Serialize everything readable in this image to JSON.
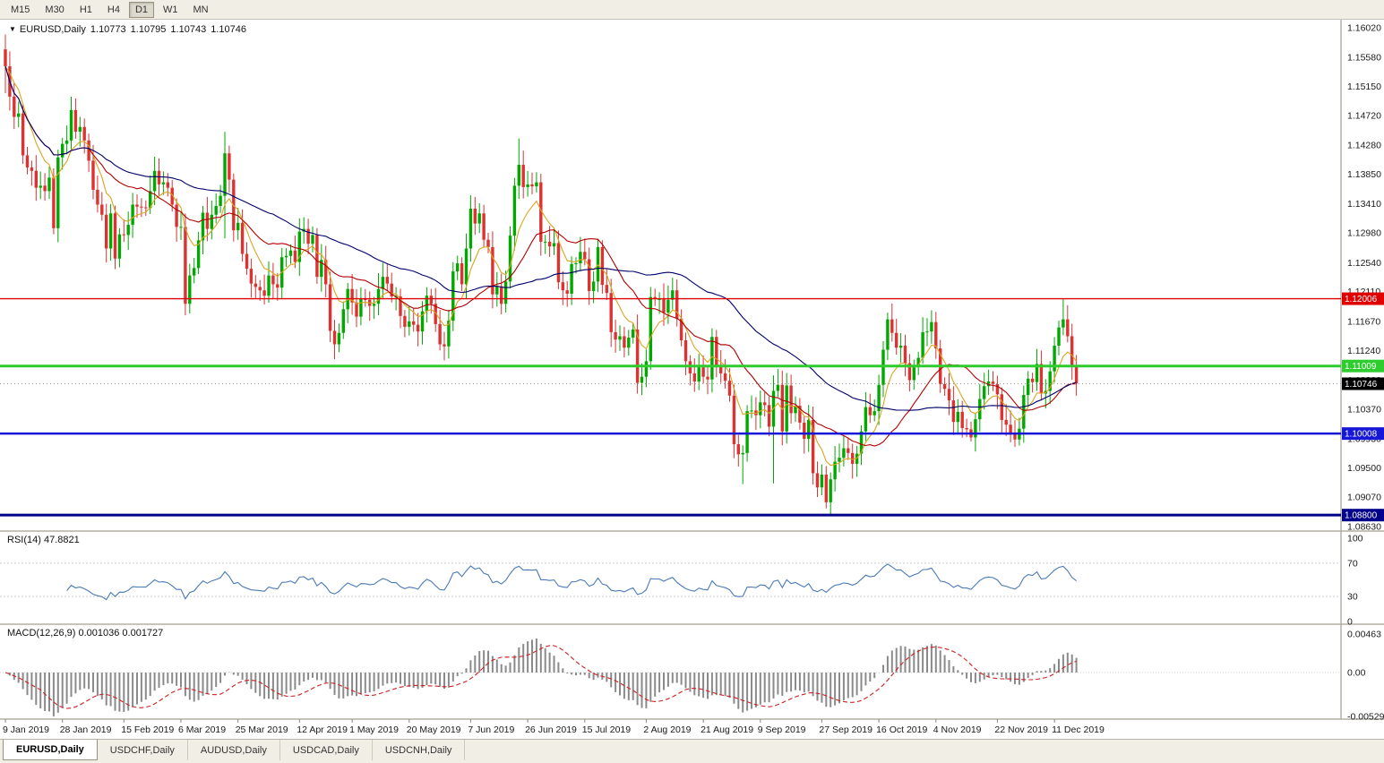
{
  "toolbar": {
    "timeframes": [
      "M15",
      "M30",
      "H1",
      "H4",
      "D1",
      "W1",
      "MN"
    ],
    "active": "D1"
  },
  "chart_header": {
    "dropdown_icon": "▼",
    "symbol": "EURUSD,Daily",
    "open": "1.10773",
    "high": "1.10795",
    "low": "1.10743",
    "close": "1.10746"
  },
  "price_axis": {
    "ticks": [
      "1.16020",
      "1.15580",
      "1.15150",
      "1.14720",
      "1.14280",
      "1.13850",
      "1.13410",
      "1.12980",
      "1.12540",
      "1.12110",
      "1.11670",
      "1.11240",
      "1.10800",
      "1.10370",
      "1.09930",
      "1.09500",
      "1.09070",
      "1.08630"
    ]
  },
  "levels": [
    {
      "name": "resistance-line-red",
      "value": "1.12006",
      "price": 1.12006,
      "color": "#e00000",
      "width": 1.3
    },
    {
      "name": "support-line-green",
      "value": "1.11009",
      "price": 1.11009,
      "color": "#2ecc2e",
      "width": 3
    },
    {
      "name": "current-price-line",
      "value": "1.10746",
      "price": 1.10746,
      "color": "#999999",
      "width": 1,
      "dash": "1,3",
      "box_color": "#000000"
    },
    {
      "name": "support-line-blue",
      "value": "1.10008",
      "price": 1.10008,
      "color": "#1616d8",
      "width": 2.5
    },
    {
      "name": "support-line-navy",
      "value": "1.08800",
      "price": 1.088,
      "color": "#00008b",
      "width": 3
    }
  ],
  "rsi": {
    "label": "RSI(14) 47.8821",
    "period": 14,
    "value": 47.8821,
    "axis_ticks": [
      "100",
      "70",
      "30",
      "0"
    ],
    "level_lines": [
      70,
      30
    ],
    "color": "#4a7ab5"
  },
  "macd": {
    "label": "MACD(12,26,9) 0.001036 0.001727",
    "fast": 12,
    "slow": 26,
    "signal": 9,
    "values": {
      "macd": 0.001036,
      "signal": 0.001727
    },
    "axis_ticks": [
      "0.00463",
      "0.00",
      "-0.00529"
    ]
  },
  "date_axis": [
    {
      "label": "9 Jan 2019",
      "index": 0
    },
    {
      "label": "28 Jan 2019",
      "index": 13
    },
    {
      "label": "15 Feb 2019",
      "index": 27
    },
    {
      "label": "6 Mar 2019",
      "index": 40
    },
    {
      "label": "25 Mar 2019",
      "index": 53
    },
    {
      "label": "12 Apr 2019",
      "index": 67
    },
    {
      "label": "1 May 2019",
      "index": 79
    },
    {
      "label": "20 May 2019",
      "index": 92
    },
    {
      "label": "7 Jun 2019",
      "index": 106
    },
    {
      "label": "26 Jun 2019",
      "index": 119
    },
    {
      "label": "15 Jul 2019",
      "index": 132
    },
    {
      "label": "2 Aug 2019",
      "index": 146
    },
    {
      "label": "21 Aug 2019",
      "index": 159
    },
    {
      "label": "9 Sep 2019",
      "index": 172
    },
    {
      "label": "27 Sep 2019",
      "index": 186
    },
    {
      "label": "16 Oct 2019",
      "index": 199
    },
    {
      "label": "4 Nov 2019",
      "index": 212
    },
    {
      "label": "22 Nov 2019",
      "index": 226
    },
    {
      "label": "11 Dec 2019",
      "index": 239
    }
  ],
  "bottom_tabs": [
    "EURUSD,Daily",
    "USDCHF,Daily",
    "AUDUSD,Daily",
    "USDCAD,Daily",
    "USDCNH,Daily"
  ],
  "active_tab": "EURUSD,Daily",
  "colors": {
    "up": "#00a800",
    "down": "#dc3232",
    "ma_fast": "#daa520",
    "ma_mid": "#b30000",
    "ma_slow": "#00006b",
    "rsi_line": "#4a7ab5",
    "macd_hist": "#8a8a8a",
    "macd_signal": "#cc2222",
    "separator": "#b3afa3",
    "axis_text": "#1a1a1a",
    "chart_bg": "#ffffff"
  },
  "chart_data": {
    "type": "candlestick",
    "symbol": "EURUSD",
    "timeframe": "Daily",
    "y_range": [
      1.0863,
      1.1602
    ],
    "open0": 1.157,
    "closes": [
      1.1545,
      1.15,
      1.147,
      1.1475,
      1.1413,
      1.1395,
      1.139,
      1.1365,
      1.1368,
      1.136,
      1.138,
      1.1305,
      1.141,
      1.143,
      1.1435,
      1.148,
      1.1448,
      1.1455,
      1.1435,
      1.1405,
      1.1362,
      1.134,
      1.1325,
      1.1275,
      1.1327,
      1.126,
      1.1296,
      1.1295,
      1.131,
      1.134,
      1.1337,
      1.1336,
      1.1335,
      1.136,
      1.139,
      1.137,
      1.1373,
      1.1365,
      1.134,
      1.1307,
      1.1307,
      1.1193,
      1.1235,
      1.1246,
      1.1287,
      1.1328,
      1.1304,
      1.1325,
      1.1338,
      1.1353,
      1.1416,
      1.1377,
      1.1302,
      1.1313,
      1.1267,
      1.1245,
      1.1223,
      1.1218,
      1.1213,
      1.1205,
      1.1235,
      1.1222,
      1.1217,
      1.1262,
      1.1264,
      1.1272,
      1.1255,
      1.13,
      1.1304,
      1.1282,
      1.1295,
      1.1233,
      1.1258,
      1.1222,
      1.1153,
      1.1133,
      1.115,
      1.1185,
      1.1215,
      1.1195,
      1.1174,
      1.12,
      1.1199,
      1.119,
      1.1193,
      1.1215,
      1.1233,
      1.1223,
      1.1204,
      1.1204,
      1.1175,
      1.1159,
      1.1167,
      1.1162,
      1.1152,
      1.1182,
      1.1205,
      1.1193,
      1.1163,
      1.1133,
      1.113,
      1.1168,
      1.1241,
      1.1253,
      1.1222,
      1.1275,
      1.1334,
      1.1312,
      1.1327,
      1.1288,
      1.1277,
      1.1207,
      1.1219,
      1.1193,
      1.1226,
      1.1294,
      1.1368,
      1.1399,
      1.1366,
      1.137,
      1.1367,
      1.1373,
      1.1285,
      1.1285,
      1.1278,
      1.1283,
      1.1225,
      1.1213,
      1.1208,
      1.1252,
      1.1253,
      1.127,
      1.1259,
      1.1212,
      1.1226,
      1.1277,
      1.1221,
      1.1209,
      1.1151,
      1.114,
      1.1145,
      1.1128,
      1.1143,
      1.1155,
      1.1076,
      1.1085,
      1.1108,
      1.1203,
      1.12,
      1.12,
      1.118,
      1.1199,
      1.1213,
      1.1171,
      1.1139,
      1.1108,
      1.109,
      1.1078,
      1.1099,
      1.1085,
      1.1081,
      1.1144,
      1.1101,
      1.109,
      1.1079,
      1.1057,
      1.0985,
      1.097,
      1.0972,
      1.1034,
      1.1035,
      1.1028,
      1.1047,
      1.1043,
      1.1011,
      1.1064,
      1.1073,
      1.1004,
      1.1072,
      1.1031,
      1.1042,
      1.1017,
      1.0993,
      1.1021,
      1.0942,
      1.0921,
      1.094,
      1.0899,
      1.0933,
      1.0959,
      1.0965,
      1.0979,
      1.0972,
      1.0956,
      1.0971,
      1.1004,
      1.104,
      1.1028,
      1.1034,
      1.1073,
      1.1125,
      1.117,
      1.115,
      1.1128,
      1.1131,
      1.1105,
      1.108,
      1.1099,
      1.1113,
      1.1151,
      1.1152,
      1.1166,
      1.1127,
      1.1074,
      1.1067,
      1.105,
      1.1018,
      1.1033,
      1.1009,
      1.1007,
      1.0995,
      1.1022,
      1.1052,
      1.1071,
      1.1078,
      1.1074,
      1.1059,
      1.1021,
      1.1014,
      1.1002,
      1.0992,
      1.1008,
      1.1058,
      1.1082,
      1.1077,
      1.1104,
      1.106,
      1.1064,
      1.1093,
      1.1131,
      1.1158,
      1.117,
      1.1145,
      1.1101,
      1.1075
    ],
    "wick_overrides": {
      "0": {
        "h": 1.1592,
        "l": 1.1505
      },
      "41": {
        "l": 1.1176
      },
      "50": {
        "h": 1.1448,
        "l": 1.129
      },
      "75": {
        "l": 1.1111
      },
      "117": {
        "h": 1.1438
      },
      "118": {
        "h": 1.142
      },
      "144": {
        "l": 1.106
      },
      "168": {
        "l": 1.0926
      },
      "175": {
        "h": 1.1087,
        "l": 1.0927
      },
      "188": {
        "l": 1.0879
      },
      "201": {
        "h": 1.118
      },
      "220": {
        "l": 1.0989
      },
      "230": {
        "l": 1.0981
      },
      "241": {
        "h": 1.12
      }
    },
    "moving_averages": [
      {
        "period": 8,
        "type": "ema",
        "color_key": "ma_fast"
      },
      {
        "period": 20,
        "type": "sma",
        "color_key": "ma_mid"
      },
      {
        "period": 50,
        "type": "sma",
        "color_key": "ma_slow"
      }
    ]
  }
}
